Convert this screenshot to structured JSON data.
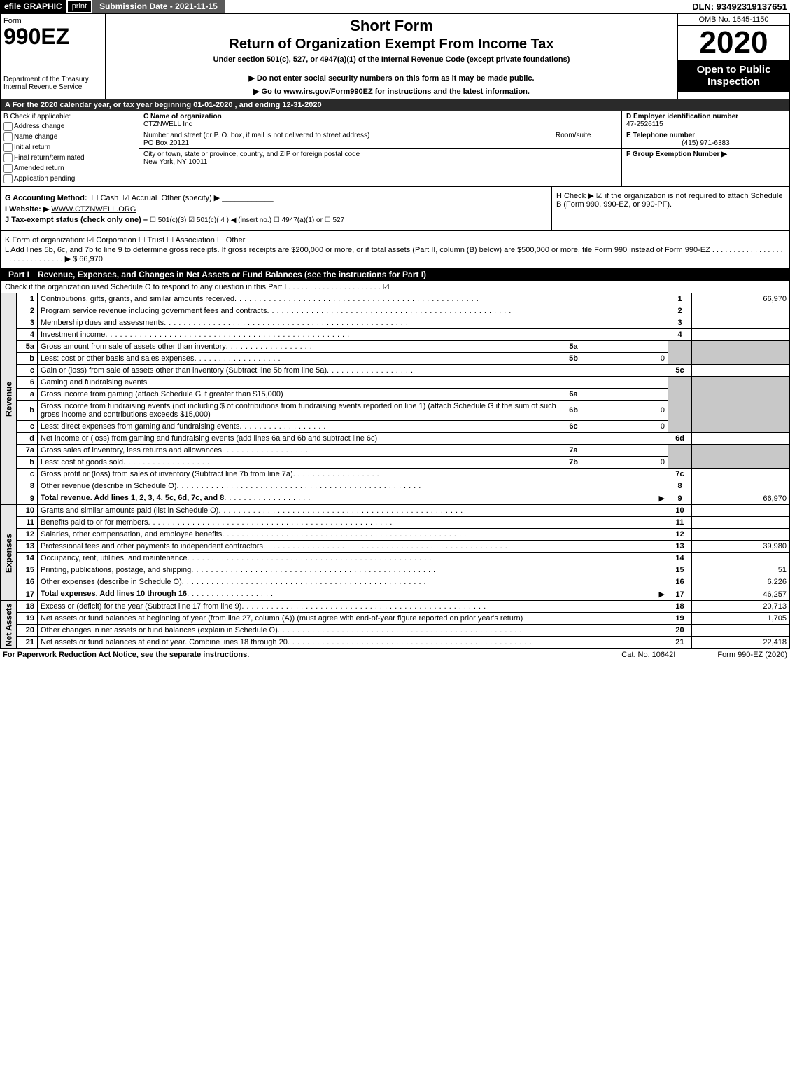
{
  "top": {
    "efile": "efile GRAPHIC",
    "print": "print",
    "submission_label": "Submission Date - 2021-11-15",
    "dln": "DLN: 93492319137651"
  },
  "header": {
    "form_label": "Form",
    "form_number": "990EZ",
    "dept": "Department of the Treasury",
    "irs": "Internal Revenue Service",
    "short_form": "Short Form",
    "return_exempt": "Return of Organization Exempt From Income Tax",
    "under_section": "Under section 501(c), 527, or 4947(a)(1) of the Internal Revenue Code (except private foundations)",
    "do_not_enter": "▶ Do not enter social security numbers on this form as it may be made public.",
    "go_to": "▶ Go to www.irs.gov/Form990EZ for instructions and the latest information.",
    "omb": "OMB No. 1545-1150",
    "year": "2020",
    "open_public": "Open to Public Inspection"
  },
  "taxyear": "A For the 2020 calendar year, or tax year beginning 01-01-2020 , and ending 12-31-2020",
  "entity": {
    "b_label": "B Check if applicable:",
    "b_items": [
      "Address change",
      "Name change",
      "Initial return",
      "Final return/terminated",
      "Amended return",
      "Application pending"
    ],
    "c_label": "C Name of organization",
    "c_name": "CTZNWELL Inc",
    "street_label": "Number and street (or P. O. box, if mail is not delivered to street address)",
    "street": "PO Box 20121",
    "room_label": "Room/suite",
    "city_label": "City or town, state or province, country, and ZIP or foreign postal code",
    "city": "New York, NY  10011",
    "d_label": "D Employer identification number",
    "d_val": "47-2526115",
    "e_label": "E Telephone number",
    "e_val": "(415) 971-6383",
    "f_label": "F Group Exemption Number ▶"
  },
  "gh": {
    "g_label": "G Accounting Method:",
    "g_cash": "Cash",
    "g_accrual": "Accrual",
    "g_other": "Other (specify) ▶",
    "i_label": "I Website: ▶",
    "i_val": "WWW.CTZNWELL.ORG",
    "j_label": "J Tax-exempt status (check only one) –",
    "j_opts": "☐ 501(c)(3)  ☑ 501(c)( 4 ) ◀ (insert no.)  ☐ 4947(a)(1) or  ☐ 527",
    "h_label": "H Check ▶ ☑ if the organization is not required to attach Schedule B (Form 990, 990-EZ, or 990-PF)."
  },
  "k_line": "K Form of organization:  ☑ Corporation  ☐ Trust  ☐ Association  ☐ Other",
  "l_line": "L Add lines 5b, 6c, and 7b to line 9 to determine gross receipts. If gross receipts are $200,000 or more, or if total assets (Part II, column (B) below) are $500,000 or more, file Form 990 instead of Form 990-EZ  .  .  .  .  .  .  .  .  .  .  .  .  .  .  .  .  .  .  .  .  .  .  .  .  .  .  .  .  .  .  .  ▶ $ 66,970",
  "part1": {
    "label": "Part I",
    "title": "Revenue, Expenses, and Changes in Net Assets or Fund Balances (see the instructions for Part I)",
    "sub": "Check if the organization used Schedule O to respond to any question in this Part I  .  .  .  .  .  .  .  .  .  .  .  .  .  .  .  .  .  .  .  .  .  .  ☑"
  },
  "sections": {
    "revenue": "Revenue",
    "expenses": "Expenses",
    "netassets": "Net Assets"
  },
  "rows": {
    "r1": {
      "n": "1",
      "d": "Contributions, gifts, grants, and similar amounts received",
      "ln": "1",
      "amt": "66,970"
    },
    "r2": {
      "n": "2",
      "d": "Program service revenue including government fees and contracts",
      "ln": "2",
      "amt": ""
    },
    "r3": {
      "n": "3",
      "d": "Membership dues and assessments",
      "ln": "3",
      "amt": ""
    },
    "r4": {
      "n": "4",
      "d": "Investment income",
      "ln": "4",
      "amt": ""
    },
    "r5a": {
      "n": "5a",
      "d": "Gross amount from sale of assets other than inventory",
      "sl": "5a",
      "sv": ""
    },
    "r5b": {
      "n": "b",
      "d": "Less: cost or other basis and sales expenses",
      "sl": "5b",
      "sv": "0"
    },
    "r5c": {
      "n": "c",
      "d": "Gain or (loss) from sale of assets other than inventory (Subtract line 5b from line 5a)",
      "ln": "5c",
      "amt": ""
    },
    "r6": {
      "n": "6",
      "d": "Gaming and fundraising events"
    },
    "r6a": {
      "n": "a",
      "d": "Gross income from gaming (attach Schedule G if greater than $15,000)",
      "sl": "6a",
      "sv": ""
    },
    "r6b": {
      "n": "b",
      "d": "Gross income from fundraising events (not including $               of contributions from fundraising events reported on line 1) (attach Schedule G if the sum of such gross income and contributions exceeds $15,000)",
      "sl": "6b",
      "sv": "0"
    },
    "r6c": {
      "n": "c",
      "d": "Less: direct expenses from gaming and fundraising events",
      "sl": "6c",
      "sv": "0"
    },
    "r6d": {
      "n": "d",
      "d": "Net income or (loss) from gaming and fundraising events (add lines 6a and 6b and subtract line 6c)",
      "ln": "6d",
      "amt": ""
    },
    "r7a": {
      "n": "7a",
      "d": "Gross sales of inventory, less returns and allowances",
      "sl": "7a",
      "sv": ""
    },
    "r7b": {
      "n": "b",
      "d": "Less: cost of goods sold",
      "sl": "7b",
      "sv": "0"
    },
    "r7c": {
      "n": "c",
      "d": "Gross profit or (loss) from sales of inventory (Subtract line 7b from line 7a)",
      "ln": "7c",
      "amt": ""
    },
    "r8": {
      "n": "8",
      "d": "Other revenue (describe in Schedule O)",
      "ln": "8",
      "amt": ""
    },
    "r9": {
      "n": "9",
      "d": "Total revenue. Add lines 1, 2, 3, 4, 5c, 6d, 7c, and 8",
      "ln": "9",
      "amt": "66,970",
      "arrow": "▶",
      "bold": true
    },
    "r10": {
      "n": "10",
      "d": "Grants and similar amounts paid (list in Schedule O)",
      "ln": "10",
      "amt": ""
    },
    "r11": {
      "n": "11",
      "d": "Benefits paid to or for members",
      "ln": "11",
      "amt": ""
    },
    "r12": {
      "n": "12",
      "d": "Salaries, other compensation, and employee benefits",
      "ln": "12",
      "amt": ""
    },
    "r13": {
      "n": "13",
      "d": "Professional fees and other payments to independent contractors",
      "ln": "13",
      "amt": "39,980"
    },
    "r14": {
      "n": "14",
      "d": "Occupancy, rent, utilities, and maintenance",
      "ln": "14",
      "amt": ""
    },
    "r15": {
      "n": "15",
      "d": "Printing, publications, postage, and shipping",
      "ln": "15",
      "amt": "51"
    },
    "r16": {
      "n": "16",
      "d": "Other expenses (describe in Schedule O)",
      "ln": "16",
      "amt": "6,226"
    },
    "r17": {
      "n": "17",
      "d": "Total expenses. Add lines 10 through 16",
      "ln": "17",
      "amt": "46,257",
      "arrow": "▶",
      "bold": true
    },
    "r18": {
      "n": "18",
      "d": "Excess or (deficit) for the year (Subtract line 17 from line 9)",
      "ln": "18",
      "amt": "20,713"
    },
    "r19": {
      "n": "19",
      "d": "Net assets or fund balances at beginning of year (from line 27, column (A)) (must agree with end-of-year figure reported on prior year's return)",
      "ln": "19",
      "amt": "1,705"
    },
    "r20": {
      "n": "20",
      "d": "Other changes in net assets or fund balances (explain in Schedule O)",
      "ln": "20",
      "amt": ""
    },
    "r21": {
      "n": "21",
      "d": "Net assets or fund balances at end of year. Combine lines 18 through 20",
      "ln": "21",
      "amt": "22,418"
    }
  },
  "footer": {
    "paperwork": "For Paperwork Reduction Act Notice, see the separate instructions.",
    "catno": "Cat. No. 10642I",
    "formver": "Form 990-EZ (2020)"
  },
  "colors": {
    "black": "#000000",
    "darkgrey": "#5a5a5a",
    "shade": "#c8c8c8",
    "lightgrey": "#e8e8e8"
  }
}
